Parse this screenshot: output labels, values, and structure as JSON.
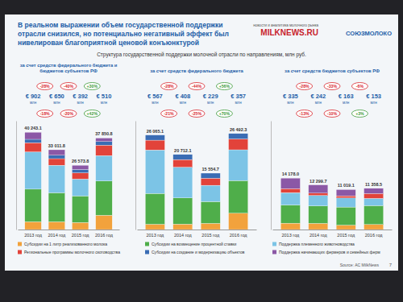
{
  "slide": {
    "title": [
      "В реальном выражении объем государственной поддержки",
      "отрасли снизился, но потенциально негативный эффект был",
      "нивелирован благоприятной ценовой конъюнктурой"
    ],
    "subtitle": "Структура государственной поддержки молочной отрасли по направлениям, млн руб.",
    "logo_tag": "новости и аналитика молочного рынка",
    "logo_left": "MILKNEWS.RU",
    "logo_right": "СОЮЗМОЛОКО",
    "source": "Source: АС MilkNews",
    "page": "7"
  },
  "chart_data": [
    {
      "type": "bar",
      "stacked": true,
      "data_labels": false,
      "tick_labels": "x",
      "title": [
        "за счет средств федерального бюджета и",
        "бюджетов субъектов РФ"
      ],
      "categories": [
        "2013 год",
        "2014 год",
        "2015 год",
        "2016 год"
      ],
      "ylim": [
        0,
        45000
      ],
      "series": [
        {
          "name": "Субсидии на 1 литр реализованного молока",
          "color": "#f2a23c",
          "values": [
            3204.1,
            3200,
            2900,
            5894.3
          ]
        },
        {
          "name": "Субсидии на возмещение процентной ставки",
          "color": "#4fae4a",
          "values": [
            13500,
            12000,
            11000,
            14200
          ]
        },
        {
          "name": "Поддержка племенного животноводства",
          "color": "#7cc4e6",
          "values": [
            15422.5,
            11400,
            7000,
            10500
          ]
        },
        {
          "name": "Региональные программы молочного скотоводства",
          "color": "#e2433a",
          "values": [
            3800,
            2736.7,
            2554.7,
            4322.3
          ]
        },
        {
          "name": "Субсидии на создание и модернизацию объектов",
          "color": "#3a6cb4",
          "values": [
            1412.1,
            1412.1,
            1400,
            1500
          ]
        },
        {
          "name": "Поддержка начинающих фермеров и семейных ферм",
          "color": "#8b58a6",
          "values": [
            2904.4,
            2263.0,
            1719.1,
            1434.2
          ]
        }
      ],
      "totals": [
        40243.1,
        33011.8,
        26573.8,
        37850.8
      ],
      "total_labels": [
        "40 243.1",
        "33 011.8",
        "26 573.8",
        "37 850.8"
      ],
      "changes": [
        "-18%",
        "-20%",
        "+42%"
      ],
      "eur_labels": [
        "€ 902",
        "€ 650",
        "€ 392",
        "€ 510"
      ],
      "eur_unit": "млн",
      "eur_changes": [
        "-28%",
        "-40%",
        "+30%"
      ]
    },
    {
      "type": "bar",
      "stacked": true,
      "data_labels": false,
      "tick_labels": "x",
      "title": [
        "за счет средств федерального бюджета"
      ],
      "categories": [
        "2013 год",
        "2014 год",
        "2015 год",
        "2016 год"
      ],
      "ylim": [
        0,
        30000
      ],
      "series": [
        {
          "color": "#f2a23c",
          "values": [
            1453,
            1500,
            1700,
            4500
          ]
        },
        {
          "color": "#4fae4a",
          "values": [
            8500,
            7200,
            6000,
            9000
          ]
        },
        {
          "color": "#7cc4e6",
          "values": [
            12000,
            8500,
            4500,
            8500
          ]
        },
        {
          "color": "#e2433a",
          "values": [
            2700,
            2100,
            1954.7,
            2992.3
          ]
        },
        {
          "color": "#3a6cb4",
          "values": [
            1412.1,
            1412.1,
            1400,
            1500
          ]
        },
        {
          "color": "#8b58a6",
          "values": [
            0,
            0,
            0,
            0
          ]
        }
      ],
      "totals": [
        26065.1,
        20712.1,
        15554.7,
        26492.3
      ],
      "total_labels": [
        "26 065.1",
        "20 712.1",
        "15 554.7",
        "26 492.3"
      ],
      "changes": [
        "-21%",
        "-25%",
        "+70%"
      ],
      "eur_labels": [
        "€ 567",
        "€ 408",
        "€ 229",
        "€ 357"
      ],
      "eur_unit": "млн",
      "eur_changes": [
        "-28%",
        "-44%",
        "+56%"
      ]
    },
    {
      "type": "bar",
      "stacked": true,
      "data_labels": false,
      "tick_labels": "x",
      "title": [
        "за счет средств бюджетов субъектов РФ"
      ],
      "categories": [
        "2013 год",
        "2014 год",
        "2015 год",
        "2016 год"
      ],
      "ylim": [
        0,
        30000
      ],
      "series": [
        {
          "color": "#f2a23c",
          "values": [
            1751.1,
            1700,
            1200,
            1394.3
          ]
        },
        {
          "color": "#4fae4a",
          "values": [
            5000,
            4800,
            5000,
            5200
          ]
        },
        {
          "color": "#7cc4e6",
          "values": [
            3422.5,
            2900,
            2500,
            2000
          ]
        },
        {
          "color": "#e2433a",
          "values": [
            1100,
            636.7,
            600,
            1330
          ]
        },
        {
          "color": "#3a6cb4",
          "values": [
            0,
            0,
            0,
            0
          ]
        },
        {
          "color": "#8b58a6",
          "values": [
            2904.4,
            2263.0,
            1719.1,
            1434.2
          ]
        }
      ],
      "totals": [
        14178.0,
        12299.7,
        11019.1,
        11358.5
      ],
      "total_labels": [
        "14 178.0",
        "12 299.7",
        "11 019.1",
        "11 358.5"
      ],
      "changes": [
        "-13%",
        "-10%",
        "+3%"
      ],
      "eur_labels": [
        "€ 335",
        "€ 242",
        "€ 163",
        "€ 153"
      ],
      "eur_unit": "млн",
      "eur_changes": [
        "-28%",
        "-33%",
        "-6%"
      ]
    }
  ]
}
